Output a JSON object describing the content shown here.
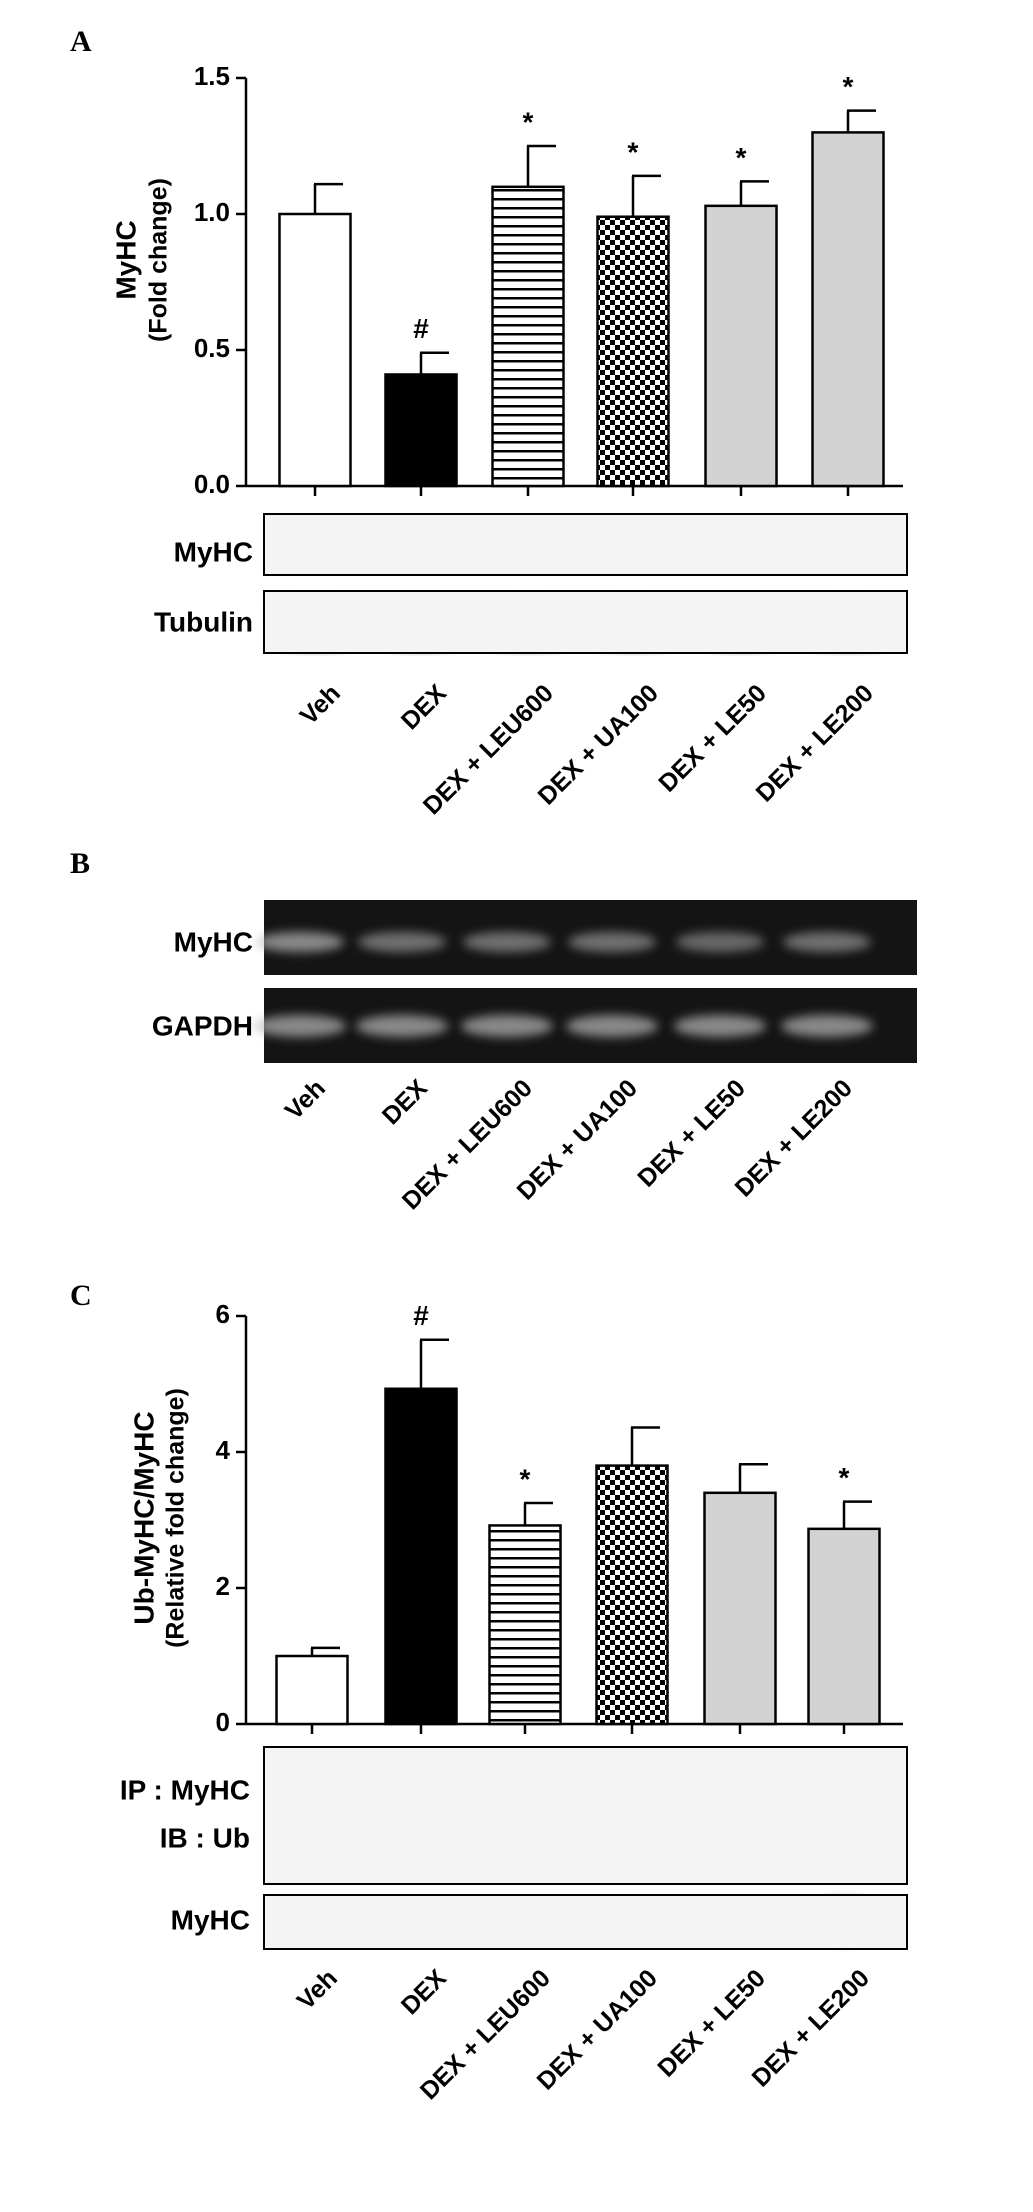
{
  "chart_data": [
    {
      "type": "bar",
      "panel": "A",
      "y_label": [
        "MyHC",
        "(Fold change)"
      ],
      "categories": [
        "Veh",
        "DEX",
        "DEX + LEU600",
        "DEX + UA100",
        "DEX + LE50",
        "DEX + LE200"
      ],
      "values": [
        1.0,
        0.41,
        1.1,
        0.99,
        1.03,
        1.3
      ],
      "errors": [
        0.11,
        0.08,
        0.15,
        0.15,
        0.09,
        0.08
      ],
      "annotations": [
        null,
        "#",
        "*",
        "*",
        "*",
        "*"
      ],
      "patterns": [
        "#ffffff",
        "#000000",
        "stripes",
        "checker",
        "#d3d3d3",
        "#d3d3d3"
      ],
      "ylim": [
        0,
        1.5
      ],
      "yticks": [
        {
          "value": 0,
          "label": "0.0"
        },
        {
          "value": 0.5,
          "label": "0.5"
        },
        {
          "value": 1.0,
          "label": "1.0"
        },
        {
          "value": 1.5,
          "label": "1.5"
        }
      ],
      "blot_labels": [
        "MyHC",
        "Tubulin"
      ]
    },
    {
      "type": "bar",
      "panel": "C",
      "y_label": [
        "Ub-MyHC/MyHC",
        "(Relative fold change)"
      ],
      "categories": [
        "Veh",
        "DEX",
        "DEX + LEU600",
        "DEX + UA100",
        "DEX + LE50",
        "DEX + LE200"
      ],
      "values": [
        1.0,
        4.93,
        2.92,
        3.8,
        3.4,
        2.87
      ],
      "errors": [
        0.12,
        0.72,
        0.33,
        0.56,
        0.42,
        0.4
      ],
      "annotations": [
        null,
        "#",
        "*",
        null,
        null,
        "*"
      ],
      "patterns": [
        "#ffffff",
        "#000000",
        "stripes",
        "checker",
        "#d3d3d3",
        "#d3d3d3"
      ],
      "ylim": [
        0,
        6
      ],
      "yticks": [
        0,
        2,
        4,
        6
      ],
      "blot_labels": [
        "IP : MyHC",
        "IB : Ub",
        "MyHC"
      ]
    }
  ],
  "panel_B": {
    "panel": "B",
    "gel_labels": [
      "MyHC",
      "GAPDH"
    ],
    "categories": [
      "Veh",
      "DEX",
      "DEX + LEU600",
      "DEX + UA100",
      "DEX + LE50",
      "DEX + LE200"
    ]
  }
}
